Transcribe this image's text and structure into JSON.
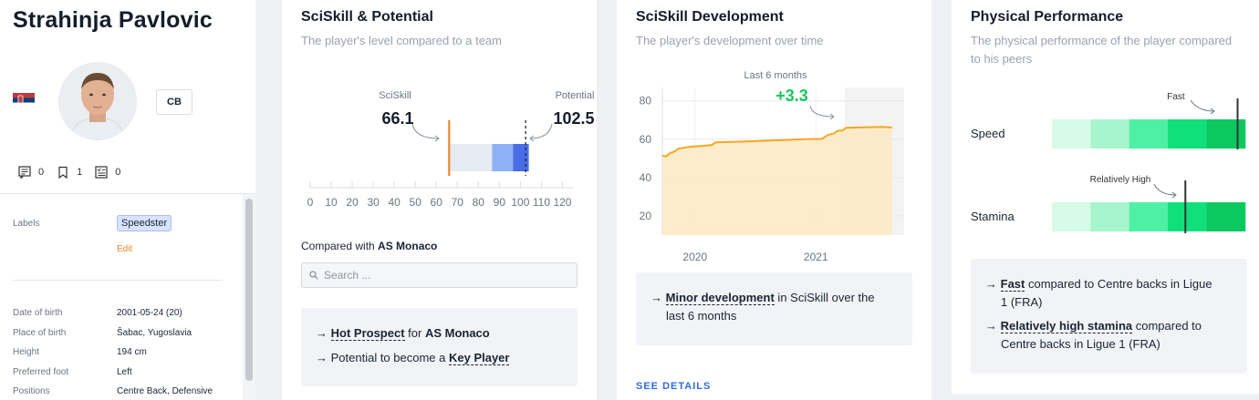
{
  "player": {
    "name": "Strahinja Pavlovic",
    "position_chip": "CB",
    "counters": {
      "comments": "0",
      "bookmarks": "1",
      "tasks": "0"
    },
    "labels_label": "Labels",
    "tag": "Speedster",
    "edit_label": "Edit",
    "fields": [
      {
        "label": "Date of birth",
        "value": "2001-05-24 (20)"
      },
      {
        "label": "Place of birth",
        "value": "Šabac, Yugoslavia"
      },
      {
        "label": "Height",
        "value": "194 cm"
      },
      {
        "label": "Preferred foot",
        "value": "Left"
      },
      {
        "label": "Positions",
        "value": "Centre Back, Defensive"
      }
    ],
    "colors": {
      "flag_red": "#c6363c",
      "flag_blue": "#0c4076"
    }
  },
  "potential": {
    "title": "SciSkill & Potential",
    "subtitle": "The player's level compared to a team",
    "sciskill_label": "SciSkill",
    "sciskill_value": "66.1",
    "potential_label": "Potential",
    "potential_value": "102.5",
    "compared_prefix": "Compared with ",
    "compared_team": "AS Monaco",
    "search_placeholder": "Search ...",
    "info_1_prefix": "→ ",
    "info_1_bold": "Hot Prospect",
    "info_1_mid": " for ",
    "info_1_team": "AS Monaco",
    "info_2_prefix": "→ Potential to become a ",
    "info_2_bold": "Key Player",
    "colors": {
      "marker": "#e98a2b",
      "light": "#e6eaf2",
      "mid": "#8fb0f7",
      "dark": "#4a6de6"
    }
  },
  "development": {
    "title": "SciSkill Development",
    "subtitle": "The player's development over time",
    "window_label": "Last 6 months",
    "delta": "+3.3",
    "info_prefix": "→ ",
    "info_bold": "Minor development",
    "info_rest_1": " in SciSkill over the",
    "info_rest_2": "last 6 months",
    "see_details": "SEE DETAILS",
    "colors": {
      "line": "#f5a623",
      "fill": "#fde9c1",
      "delta": "#16c65a"
    }
  },
  "physical": {
    "title": "Physical Performance",
    "subtitle_1": "The physical performance of the player compared",
    "subtitle_2": "to his peers",
    "rows": [
      {
        "label": "Speed",
        "marker_label": "Fast",
        "level": 0.96
      },
      {
        "label": "Stamina",
        "marker_label": "Relatively High",
        "level": 0.69
      }
    ],
    "info_1_prefix": "→ ",
    "info_1_bold": "Fast",
    "info_1_rest_1": " compared to Centre backs in Ligue",
    "info_1_rest_2": "1 (FRA)",
    "info_2_prefix": "→ ",
    "info_2_bold": "Relatively high stamina",
    "info_2_rest_1": " compared to",
    "info_2_rest_2": "Centre backs in Ligue 1 (FRA)",
    "band_colors": [
      "#d6fbe6",
      "#a7f5cc",
      "#4ef0a5",
      "#0fe079",
      "#0cc95f"
    ]
  },
  "chart_data": [
    {
      "type": "bar",
      "title": "SciSkill & Potential",
      "x_ticks": [
        "0",
        "10",
        "20",
        "30",
        "40",
        "50",
        "60",
        "70",
        "80",
        "90",
        "100",
        "110",
        "120"
      ],
      "xlim": [
        0,
        125
      ],
      "sciskill": 66.1,
      "potential": 102.5,
      "team_bands": [
        {
          "from": 66.1,
          "to": 86.5,
          "tone": "light"
        },
        {
          "from": 86.5,
          "to": 96.5,
          "tone": "mid"
        },
        {
          "from": 96.5,
          "to": 104,
          "tone": "dark"
        }
      ]
    },
    {
      "type": "area",
      "title": "SciSkill Development",
      "y_ticks": [
        "20",
        "40",
        "60",
        "80"
      ],
      "ylim": [
        10,
        87
      ],
      "x_ticks": [
        {
          "label": "2020",
          "x": 2020.0
        },
        {
          "label": "2021",
          "x": 2021.0
        }
      ],
      "xlim": [
        2019.73,
        2021.73
      ],
      "highlight_from": 2021.24,
      "x": [
        2019.73,
        2019.76,
        2019.8,
        2019.81,
        2019.84,
        2019.86,
        2019.9,
        2019.95,
        2020.0,
        2020.05,
        2020.14,
        2020.17,
        2020.3,
        2020.5,
        2020.7,
        2020.9,
        2021.05,
        2021.1,
        2021.15,
        2021.18,
        2021.22,
        2021.25,
        2021.4,
        2021.55,
        2021.63
      ],
      "values": [
        51.5,
        51,
        53,
        53,
        54,
        55,
        55.5,
        56,
        56.3,
        56.5,
        57,
        58.4,
        58.6,
        59,
        59.5,
        60,
        60.2,
        62.3,
        63,
        64.4,
        64.5,
        66,
        66.2,
        66.4,
        66.1
      ]
    }
  ]
}
